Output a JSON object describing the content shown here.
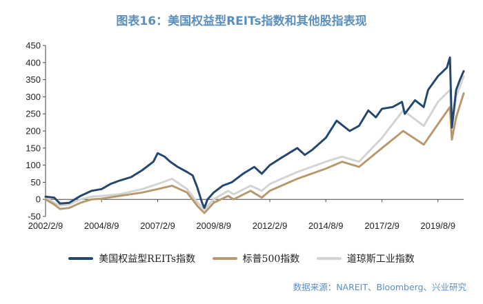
{
  "title": "图表16：美国权益型REITs指数和其他股指表现",
  "source": "数据来源：NAREIT、Bloomberg、兴业研究",
  "chart_data": {
    "type": "line",
    "ylim": [
      -50,
      450
    ],
    "yticks": [
      -50,
      0,
      50,
      100,
      150,
      200,
      250,
      300,
      350,
      400,
      450
    ],
    "x_range": [
      "2002-02-09",
      "2020-10-01"
    ],
    "xtick_labels": [
      "2002/2/9",
      "2004/8/9",
      "2007/2/9",
      "2009/8/9",
      "2012/2/9",
      "2014/8/9",
      "2017/2/9",
      "2019/8/9"
    ],
    "xtick_dates": [
      "2002-02-09",
      "2004-08-09",
      "2007-02-09",
      "2009-08-09",
      "2012-02-09",
      "2014-08-09",
      "2017-02-09",
      "2019-08-09"
    ],
    "grid": false,
    "legend_position": "bottom",
    "series": [
      {
        "name": "美国权益型REITs指数",
        "color": "#24476d",
        "points": [
          [
            "2002-02-09",
            8
          ],
          [
            "2002-07-01",
            5
          ],
          [
            "2002-10-01",
            -12
          ],
          [
            "2003-03-01",
            -10
          ],
          [
            "2003-09-01",
            10
          ],
          [
            "2004-03-01",
            25
          ],
          [
            "2004-08-09",
            30
          ],
          [
            "2005-01-01",
            45
          ],
          [
            "2005-06-01",
            55
          ],
          [
            "2005-12-01",
            65
          ],
          [
            "2006-06-01",
            85
          ],
          [
            "2006-12-01",
            110
          ],
          [
            "2007-02-09",
            135
          ],
          [
            "2007-06-01",
            125
          ],
          [
            "2007-09-01",
            110
          ],
          [
            "2008-01-01",
            95
          ],
          [
            "2008-06-01",
            80
          ],
          [
            "2008-09-01",
            70
          ],
          [
            "2008-11-15",
            35
          ],
          [
            "2009-02-01",
            -10
          ],
          [
            "2009-03-10",
            -25
          ],
          [
            "2009-05-01",
            0
          ],
          [
            "2009-08-09",
            20
          ],
          [
            "2010-01-01",
            40
          ],
          [
            "2010-06-01",
            50
          ],
          [
            "2010-12-01",
            75
          ],
          [
            "2011-06-01",
            95
          ],
          [
            "2011-10-01",
            75
          ],
          [
            "2012-02-09",
            100
          ],
          [
            "2012-08-01",
            120
          ],
          [
            "2013-05-01",
            150
          ],
          [
            "2013-09-01",
            130
          ],
          [
            "2014-01-01",
            145
          ],
          [
            "2014-08-09",
            180
          ],
          [
            "2015-02-01",
            230
          ],
          [
            "2015-09-01",
            200
          ],
          [
            "2016-02-01",
            215
          ],
          [
            "2016-07-01",
            260
          ],
          [
            "2016-11-01",
            240
          ],
          [
            "2017-02-09",
            265
          ],
          [
            "2017-08-01",
            270
          ],
          [
            "2018-01-01",
            285
          ],
          [
            "2018-02-15",
            250
          ],
          [
            "2018-08-01",
            290
          ],
          [
            "2018-12-20",
            270
          ],
          [
            "2019-03-01",
            320
          ],
          [
            "2019-08-09",
            360
          ],
          [
            "2020-01-01",
            385
          ],
          [
            "2020-02-20",
            415
          ],
          [
            "2020-03-23",
            210
          ],
          [
            "2020-06-01",
            320
          ],
          [
            "2020-08-01",
            350
          ],
          [
            "2020-10-01",
            375
          ]
        ]
      },
      {
        "name": "标普500指数",
        "color": "#b8996d",
        "points": [
          [
            "2002-02-09",
            0
          ],
          [
            "2002-07-01",
            -15
          ],
          [
            "2002-10-01",
            -28
          ],
          [
            "2003-03-01",
            -25
          ],
          [
            "2003-09-01",
            -10
          ],
          [
            "2004-03-01",
            0
          ],
          [
            "2004-08-09",
            2
          ],
          [
            "2005-06-01",
            10
          ],
          [
            "2006-06-01",
            20
          ],
          [
            "2007-02-09",
            30
          ],
          [
            "2007-10-01",
            40
          ],
          [
            "2008-06-01",
            20
          ],
          [
            "2008-11-20",
            -20
          ],
          [
            "2009-03-10",
            -40
          ],
          [
            "2009-08-09",
            -10
          ],
          [
            "2010-04-01",
            10
          ],
          [
            "2010-07-01",
            0
          ],
          [
            "2011-04-01",
            25
          ],
          [
            "2011-10-01",
            5
          ],
          [
            "2012-02-09",
            25
          ],
          [
            "2013-05-01",
            60
          ],
          [
            "2014-08-09",
            90
          ],
          [
            "2015-05-01",
            110
          ],
          [
            "2016-02-01",
            95
          ],
          [
            "2017-02-09",
            150
          ],
          [
            "2018-01-20",
            200
          ],
          [
            "2018-12-20",
            160
          ],
          [
            "2019-08-09",
            220
          ],
          [
            "2020-02-19",
            270
          ],
          [
            "2020-03-23",
            175
          ],
          [
            "2020-06-01",
            240
          ],
          [
            "2020-10-01",
            310
          ]
        ]
      },
      {
        "name": "道琼斯工业指数",
        "color": "#d3d3d3",
        "points": [
          [
            "2002-02-09",
            5
          ],
          [
            "2002-07-01",
            -10
          ],
          [
            "2002-10-01",
            -18
          ],
          [
            "2003-03-01",
            -15
          ],
          [
            "2003-09-01",
            0
          ],
          [
            "2004-03-01",
            8
          ],
          [
            "2004-08-09",
            10
          ],
          [
            "2005-06-01",
            15
          ],
          [
            "2006-06-01",
            30
          ],
          [
            "2007-02-09",
            45
          ],
          [
            "2007-10-01",
            60
          ],
          [
            "2008-06-01",
            30
          ],
          [
            "2008-11-20",
            -10
          ],
          [
            "2009-03-10",
            -30
          ],
          [
            "2009-08-09",
            0
          ],
          [
            "2010-04-01",
            25
          ],
          [
            "2010-07-01",
            15
          ],
          [
            "2011-04-01",
            40
          ],
          [
            "2011-10-01",
            25
          ],
          [
            "2012-02-09",
            45
          ],
          [
            "2013-05-01",
            80
          ],
          [
            "2014-08-09",
            110
          ],
          [
            "2015-05-01",
            125
          ],
          [
            "2016-02-01",
            110
          ],
          [
            "2017-02-09",
            180
          ],
          [
            "2018-01-20",
            260
          ],
          [
            "2018-12-20",
            215
          ],
          [
            "2019-08-09",
            285
          ],
          [
            "2020-02-19",
            320
          ],
          [
            "2020-03-23",
            210
          ],
          [
            "2020-06-01",
            300
          ],
          [
            "2020-10-01",
            360
          ]
        ]
      }
    ]
  }
}
